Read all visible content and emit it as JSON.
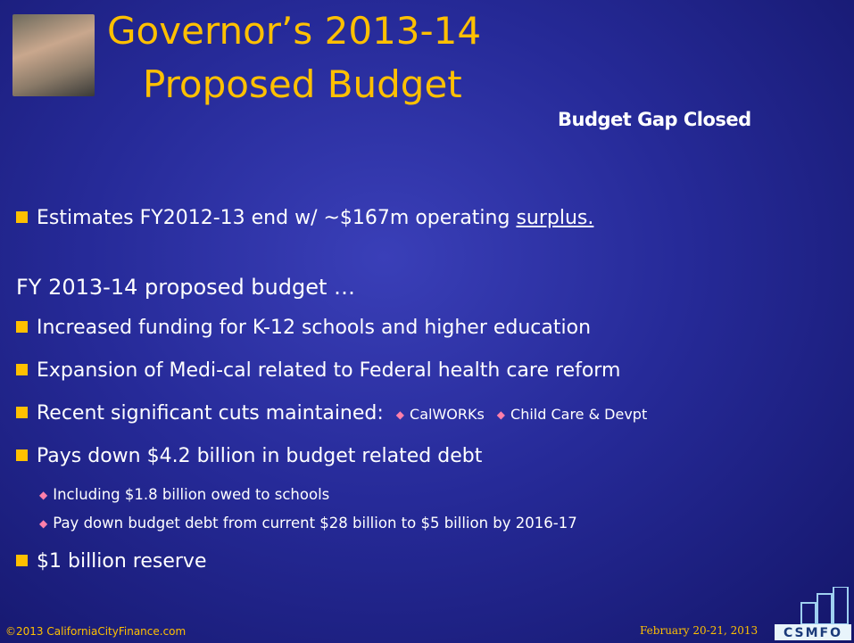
{
  "header": {
    "title_line1": "Governor’s 2013-14",
    "title_line2": "Proposed Budget",
    "subtitle": "Budget Gap Closed"
  },
  "intro": {
    "text": "Estimates FY2012-13 end w/ ~$167m operating ",
    "link": "surplus."
  },
  "section": {
    "heading": "FY 2013-14 proposed budget …",
    "bullets": [
      "Increased funding for K-12 schools and higher education",
      "Expansion of Medi-cal related to Federal health care reform",
      "Recent significant cuts maintained:",
      "Pays down $4.2 billion in budget related debt",
      "$1 billion reserve"
    ],
    "cuts": [
      "CalWORKs",
      "Child Care & Devpt"
    ],
    "debt_items": [
      "Including $1.8 billion owed to schools",
      "Pay down budget debt from current $28 billion to $5 billion by 2016-17"
    ]
  },
  "footer": {
    "left": "©2013 CaliforniaCityFinance.com",
    "date": "February 20-21, 2013",
    "logo": "CSMFO"
  }
}
